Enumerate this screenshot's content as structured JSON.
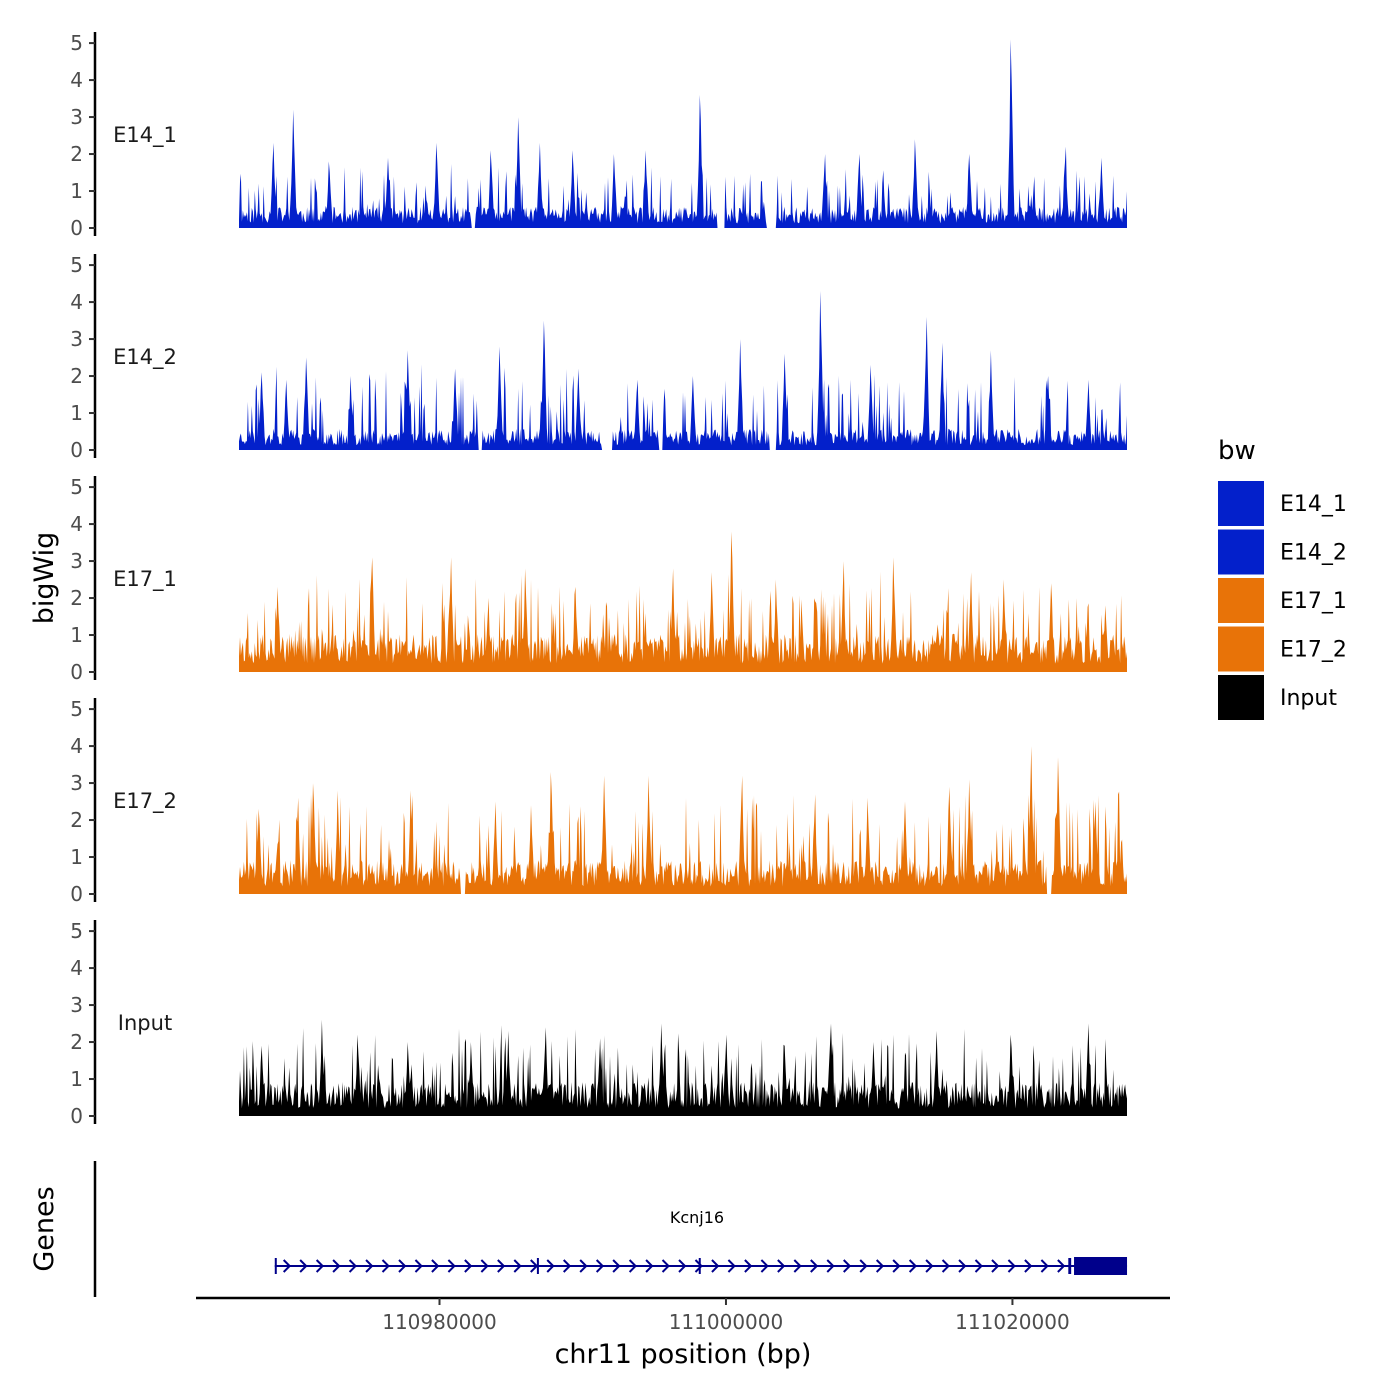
{
  "chart_data": {
    "type": "area",
    "chromosome": "chr11",
    "xlabel": "chr11 position (bp)",
    "ylabel": "bigWig",
    "gene_panel_label": "Genes",
    "x_range": [
      110966000,
      111028000
    ],
    "xlim": [
      110963000,
      111031000
    ],
    "x_ticks": [
      110980000,
      111000000,
      111020000
    ],
    "x_tick_labels": [
      "110980000",
      "111000000",
      "111020000"
    ],
    "y_range": [
      0,
      5.3
    ],
    "y_ticks": [
      0,
      1,
      2,
      3,
      4,
      5
    ],
    "y_tick_labels": [
      "0",
      "1",
      "2",
      "3",
      "4",
      "5"
    ],
    "legend": {
      "title": "bw",
      "position": "right",
      "entries": [
        {
          "label": "E14_1",
          "color": "#0320CB"
        },
        {
          "label": "E14_2",
          "color": "#0320CB"
        },
        {
          "label": "E17_1",
          "color": "#E87308"
        },
        {
          "label": "E17_2",
          "color": "#E87308"
        },
        {
          "label": "Input",
          "color": "#000000"
        }
      ]
    },
    "series": [
      {
        "name": "E14_1",
        "color": "#0320CB",
        "baseline": 0.5,
        "amp": 0.6,
        "seed": 11,
        "gaps": [
          [
            110982200,
            110982500
          ],
          [
            110999400,
            110999900
          ],
          [
            111002800,
            111003500
          ]
        ],
        "peaks": [
          {
            "x": 110969800,
            "y": 3.2
          },
          {
            "x": 110968400,
            "y": 2.3
          },
          {
            "x": 110972300,
            "y": 1.8
          },
          {
            "x": 110976400,
            "y": 1.9
          },
          {
            "x": 110979800,
            "y": 2.3
          },
          {
            "x": 110983600,
            "y": 2.1
          },
          {
            "x": 110985500,
            "y": 3.0
          },
          {
            "x": 110987000,
            "y": 2.3
          },
          {
            "x": 110989300,
            "y": 2.1
          },
          {
            "x": 110992200,
            "y": 2.0
          },
          {
            "x": 110994400,
            "y": 2.1
          },
          {
            "x": 110998200,
            "y": 3.6
          },
          {
            "x": 111006900,
            "y": 2.0
          },
          {
            "x": 111009300,
            "y": 2.0
          },
          {
            "x": 111013200,
            "y": 2.4
          },
          {
            "x": 111017000,
            "y": 2.0
          },
          {
            "x": 111019900,
            "y": 5.1
          },
          {
            "x": 111023700,
            "y": 2.2
          },
          {
            "x": 111026200,
            "y": 1.9
          }
        ]
      },
      {
        "name": "E14_2",
        "color": "#0320CB",
        "baseline": 0.5,
        "amp": 0.9,
        "seed": 23,
        "gaps": [
          [
            110982700,
            110983000
          ],
          [
            110991300,
            110992100
          ],
          [
            110995300,
            110995600
          ],
          [
            111003000,
            111003500
          ]
        ],
        "peaks": [
          {
            "x": 110967600,
            "y": 2.1
          },
          {
            "x": 110969300,
            "y": 1.9
          },
          {
            "x": 110970700,
            "y": 2.5
          },
          {
            "x": 110973800,
            "y": 2.0
          },
          {
            "x": 110977800,
            "y": 2.7
          },
          {
            "x": 110981100,
            "y": 2.2
          },
          {
            "x": 110984200,
            "y": 2.8
          },
          {
            "x": 110987300,
            "y": 3.5
          },
          {
            "x": 110989700,
            "y": 2.2
          },
          {
            "x": 110993800,
            "y": 1.9
          },
          {
            "x": 110997700,
            "y": 2.0
          },
          {
            "x": 111001000,
            "y": 3.0
          },
          {
            "x": 111004100,
            "y": 2.6
          },
          {
            "x": 111006600,
            "y": 4.3
          },
          {
            "x": 111010100,
            "y": 2.3
          },
          {
            "x": 111014000,
            "y": 3.6
          },
          {
            "x": 111015100,
            "y": 2.9
          },
          {
            "x": 111018500,
            "y": 2.7
          },
          {
            "x": 111022500,
            "y": 2.0
          },
          {
            "x": 111025300,
            "y": 1.9
          }
        ]
      },
      {
        "name": "E17_1",
        "color": "#E87308",
        "baseline": 0.9,
        "amp": 0.9,
        "seed": 37,
        "gaps": [],
        "peaks": [
          {
            "x": 110968700,
            "y": 2.3
          },
          {
            "x": 110975300,
            "y": 3.1
          },
          {
            "x": 110980800,
            "y": 3.1
          },
          {
            "x": 110983400,
            "y": 2.0
          },
          {
            "x": 110986000,
            "y": 2.8
          },
          {
            "x": 110989500,
            "y": 2.3
          },
          {
            "x": 110996300,
            "y": 2.8
          },
          {
            "x": 110999000,
            "y": 2.7
          },
          {
            "x": 111000400,
            "y": 3.8
          },
          {
            "x": 111003500,
            "y": 2.5
          },
          {
            "x": 111008200,
            "y": 3.0
          },
          {
            "x": 111011700,
            "y": 3.1
          },
          {
            "x": 111017100,
            "y": 2.7
          },
          {
            "x": 111019400,
            "y": 2.5
          },
          {
            "x": 111022700,
            "y": 2.4
          },
          {
            "x": 111026500,
            "y": 1.8
          }
        ]
      },
      {
        "name": "E17_2",
        "color": "#E87308",
        "baseline": 0.8,
        "amp": 1.0,
        "seed": 51,
        "gaps": [
          [
            110981500,
            110981800
          ],
          [
            111022400,
            111022700
          ]
        ],
        "peaks": [
          {
            "x": 110967400,
            "y": 2.3
          },
          {
            "x": 110970100,
            "y": 2.6
          },
          {
            "x": 110971200,
            "y": 3.0
          },
          {
            "x": 110972900,
            "y": 2.8
          },
          {
            "x": 110978000,
            "y": 2.8
          },
          {
            "x": 110983900,
            "y": 2.5
          },
          {
            "x": 110986400,
            "y": 2.4
          },
          {
            "x": 110987800,
            "y": 3.3
          },
          {
            "x": 110991500,
            "y": 3.2
          },
          {
            "x": 110994600,
            "y": 3.2
          },
          {
            "x": 111001100,
            "y": 3.2
          },
          {
            "x": 111006200,
            "y": 2.7
          },
          {
            "x": 111009900,
            "y": 2.6
          },
          {
            "x": 111012500,
            "y": 2.5
          },
          {
            "x": 111015600,
            "y": 2.9
          },
          {
            "x": 111017000,
            "y": 3.1
          },
          {
            "x": 111021300,
            "y": 4.0
          },
          {
            "x": 111023200,
            "y": 3.7
          },
          {
            "x": 111025800,
            "y": 2.5
          }
        ]
      },
      {
        "name": "Input",
        "color": "#000000",
        "baseline": 0.8,
        "amp": 0.8,
        "seed": 67,
        "gaps": [],
        "peaks": [
          {
            "x": 110967600,
            "y": 1.9
          },
          {
            "x": 110971800,
            "y": 2.6
          },
          {
            "x": 110974300,
            "y": 2.2
          },
          {
            "x": 110977800,
            "y": 2.0
          },
          {
            "x": 110982200,
            "y": 2.0
          },
          {
            "x": 110984800,
            "y": 2.3
          },
          {
            "x": 110987400,
            "y": 2.4
          },
          {
            "x": 110991200,
            "y": 2.1
          },
          {
            "x": 110995500,
            "y": 2.5
          },
          {
            "x": 111000000,
            "y": 2.2
          },
          {
            "x": 111004100,
            "y": 1.9
          },
          {
            "x": 111007300,
            "y": 2.5
          },
          {
            "x": 111010300,
            "y": 2.0
          },
          {
            "x": 111014700,
            "y": 2.3
          },
          {
            "x": 111019900,
            "y": 2.2
          },
          {
            "x": 111025300,
            "y": 2.5
          }
        ]
      }
    ],
    "gene": {
      "name": "Kcnj16",
      "strand": "+",
      "start": 110968500,
      "end": 111028000,
      "exons": [
        [
          110968500,
          110968600
        ],
        [
          110986800,
          110986900
        ],
        [
          110998100,
          110998200
        ],
        [
          111023900,
          111024100
        ],
        [
          111024300,
          111028000
        ]
      ],
      "color": "#00008B"
    }
  }
}
